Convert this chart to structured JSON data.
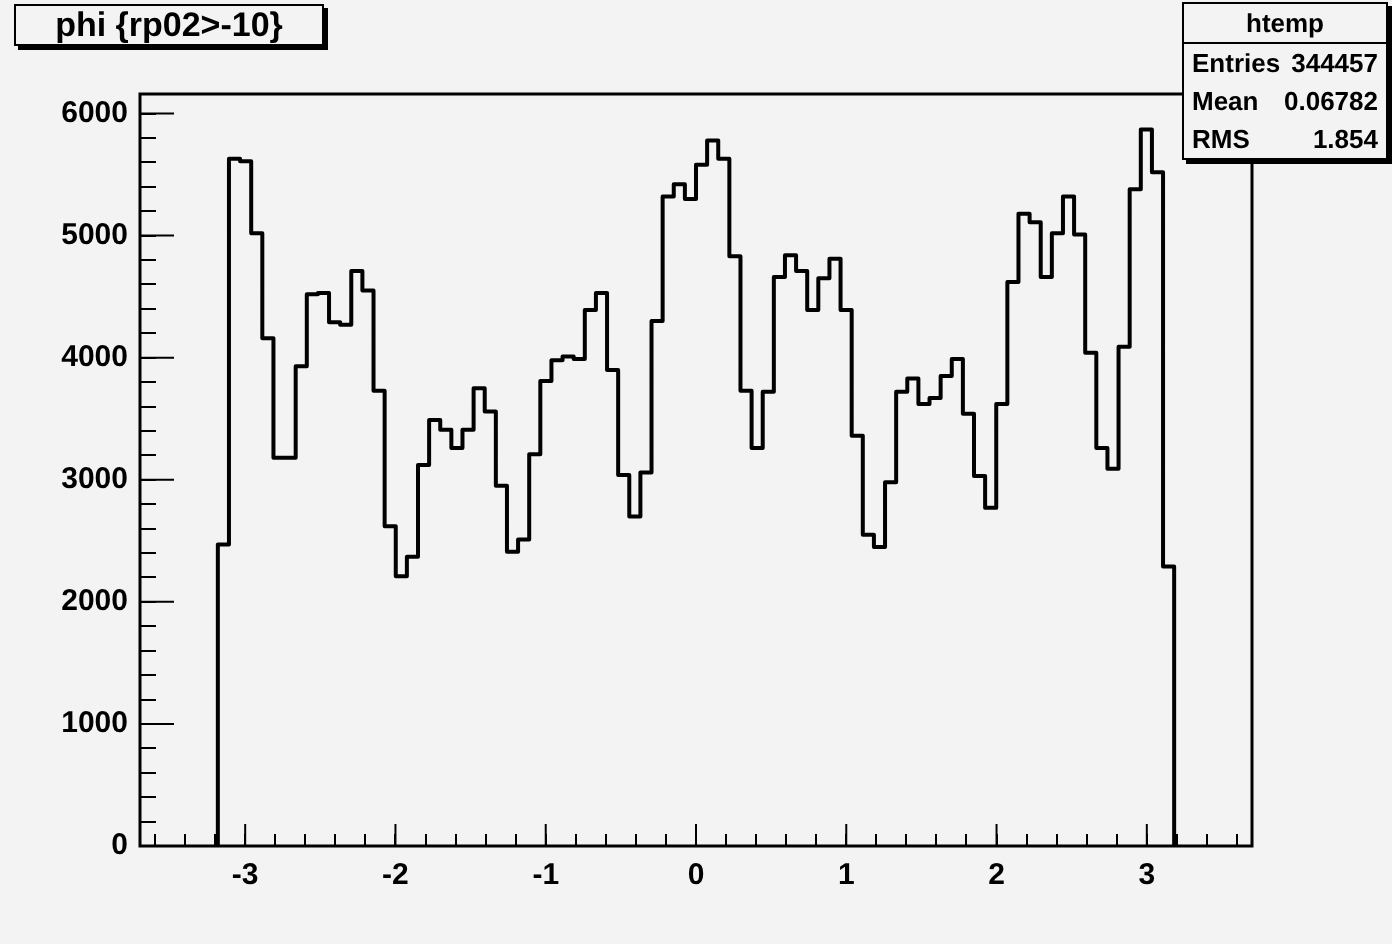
{
  "chart_data": {
    "type": "histogram",
    "title": "phi {rp02>-10}",
    "bins": [
      -3.182,
      -3.108,
      -3.034,
      -2.96,
      -2.886,
      -2.812,
      -2.738,
      -2.664,
      -2.59,
      -2.516,
      -2.442,
      -2.368,
      -2.294,
      -2.22,
      -2.146,
      -2.072,
      -1.998,
      -1.924,
      -1.85,
      -1.776,
      -1.702,
      -1.628,
      -1.554,
      -1.48,
      -1.406,
      -1.332,
      -1.258,
      -1.184,
      -1.11,
      -1.036,
      -0.962,
      -0.888,
      -0.814,
      -0.74,
      -0.666,
      -0.592,
      -0.518,
      -0.444,
      -0.37,
      -0.296,
      -0.222,
      -0.148,
      -0.074,
      0,
      0.074,
      0.148,
      0.222,
      0.296,
      0.37,
      0.444,
      0.518,
      0.592,
      0.666,
      0.74,
      0.814,
      0.888,
      0.962,
      1.036,
      1.11,
      1.184,
      1.258,
      1.332,
      1.406,
      1.48,
      1.554,
      1.628,
      1.702,
      1.776,
      1.85,
      1.924,
      1.998,
      2.072,
      2.146,
      2.22,
      2.294,
      2.368,
      2.442,
      2.516,
      2.59,
      2.664,
      2.738,
      2.812,
      2.886,
      2.96,
      3.034,
      3.108,
      3.182
    ],
    "values": [
      2470,
      5630,
      5610,
      5020,
      4160,
      3180,
      3180,
      3930,
      4520,
      4530,
      4290,
      4270,
      4710,
      4550,
      3730,
      2620,
      2210,
      2370,
      3120,
      3490,
      3410,
      3260,
      3410,
      3750,
      3560,
      2950,
      2410,
      2510,
      3210,
      3810,
      3980,
      4010,
      3990,
      4390,
      4530,
      3900,
      3040,
      2700,
      3060,
      4300,
      5320,
      5420,
      5300,
      5580,
      5780,
      5630,
      4830,
      3730,
      3260,
      3720,
      4660,
      4840,
      4710,
      4390,
      4650,
      4810,
      4390,
      3360,
      2550,
      2450,
      2980,
      3720,
      3830,
      3620,
      3670,
      3850,
      3990,
      3540,
      3030,
      2770,
      3620,
      4620,
      5180,
      5110,
      4660,
      5020,
      5320,
      5010,
      4040,
      3260,
      3090,
      4090,
      5380,
      5870,
      5520,
      2290
    ],
    "color": "#000000",
    "xlim": [
      -3.7,
      3.7
    ],
    "xticks": [
      {
        "value": -3.6,
        "label": null
      },
      {
        "value": -3.4,
        "label": null
      },
      {
        "value": -3.2,
        "label": null
      },
      -3,
      {
        "value": -2.8,
        "label": null
      },
      {
        "value": -2.6,
        "label": null
      },
      {
        "value": -2.4,
        "label": null
      },
      {
        "value": -2.2,
        "label": null
      },
      -2,
      {
        "value": -1.8,
        "label": null
      },
      {
        "value": -1.6,
        "label": null
      },
      {
        "value": -1.4,
        "label": null
      },
      {
        "value": -1.2,
        "label": null
      },
      -1,
      {
        "value": -0.8,
        "label": null
      },
      {
        "value": -0.6,
        "label": null
      },
      {
        "value": -0.4,
        "label": null
      },
      {
        "value": -0.2,
        "label": null
      },
      0,
      {
        "value": 0.2,
        "label": null
      },
      {
        "value": 0.4,
        "label": null
      },
      {
        "value": 0.6,
        "label": null
      },
      {
        "value": 0.8,
        "label": null
      },
      1,
      {
        "value": 1.2,
        "label": null
      },
      {
        "value": 1.4,
        "label": null
      },
      {
        "value": 1.6,
        "label": null
      },
      {
        "value": 1.8,
        "label": null
      },
      2,
      {
        "value": 2.2,
        "label": null
      },
      {
        "value": 2.4,
        "label": null
      },
      {
        "value": 2.6,
        "label": null
      },
      {
        "value": 2.8,
        "label": null
      },
      3,
      {
        "value": 3.2,
        "label": null
      },
      {
        "value": 3.4,
        "label": null
      },
      {
        "value": 3.6,
        "label": null
      }
    ],
    "ylim": [
      0,
      6160
    ],
    "yticks": [
      0,
      {
        "value": 200,
        "label": null
      },
      {
        "value": 400,
        "label": null
      },
      {
        "value": 600,
        "label": null
      },
      {
        "value": 800,
        "label": null
      },
      1000,
      {
        "value": 1200,
        "label": null
      },
      {
        "value": 1400,
        "label": null
      },
      {
        "value": 1600,
        "label": null
      },
      {
        "value": 1800,
        "label": null
      },
      2000,
      {
        "value": 2200,
        "label": null
      },
      {
        "value": 2400,
        "label": null
      },
      {
        "value": 2600,
        "label": null
      },
      {
        "value": 2800,
        "label": null
      },
      3000,
      {
        "value": 3200,
        "label": null
      },
      {
        "value": 3400,
        "label": null
      },
      {
        "value": 3600,
        "label": null
      },
      {
        "value": 3800,
        "label": null
      },
      4000,
      {
        "value": 4200,
        "label": null
      },
      {
        "value": 4400,
        "label": null
      },
      {
        "value": 4600,
        "label": null
      },
      {
        "value": 4800,
        "label": null
      },
      5000,
      {
        "value": 5200,
        "label": null
      },
      {
        "value": 5400,
        "label": null
      },
      {
        "value": 5600,
        "label": null
      },
      {
        "value": 5800,
        "label": null
      },
      6000
    ],
    "grid": false,
    "legend": false,
    "annotations": [
      "htemp",
      "Entries",
      "344457",
      "Mean",
      "0.06782",
      "RMS",
      "1.854"
    ]
  }
}
